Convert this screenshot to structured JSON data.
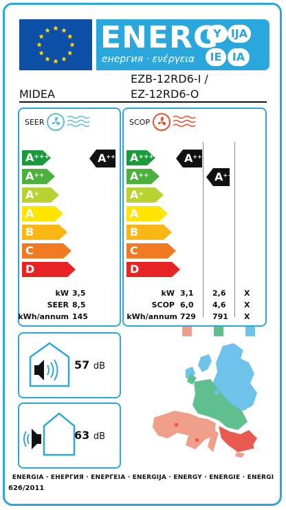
{
  "header": {
    "energy_word": "ENERG",
    "energy_subtitle": "енергия · ενέργεια",
    "lang_badges": [
      "Y",
      "IJA",
      "IE",
      "IA"
    ],
    "model_line1": "EZB-12RD6-I /",
    "model_line2": "EZ-12RD6-O",
    "brand": "MIDEA"
  },
  "seer": {
    "label": "SEER",
    "scale": [
      "A+++",
      "A++",
      "A+",
      "A",
      "B",
      "C",
      "D"
    ],
    "class": "A+++",
    "rows": [
      {
        "label": "kW",
        "value": "3,5"
      },
      {
        "label": "SEER",
        "value": "8,5"
      },
      {
        "label": "kWh/annum",
        "value": "145"
      }
    ]
  },
  "scop": {
    "label": "SCOP",
    "scale": [
      "A+++",
      "A++",
      "A+",
      "A",
      "B",
      "C",
      "D"
    ],
    "class_warm": "A+++",
    "class_average": "A++",
    "rows": [
      {
        "label": "kW",
        "values": [
          "3,1",
          "2,6",
          "X"
        ]
      },
      {
        "label": "SCOP",
        "values": [
          "6,0",
          "4,6",
          "X"
        ]
      },
      {
        "label": "kWh/annum",
        "values": [
          "729",
          "791",
          "X"
        ]
      }
    ]
  },
  "colors": {
    "frame": "#2aa7dd",
    "eu_blue": "#0d4fa6",
    "scale": [
      "#1a9a3a",
      "#4bb13b",
      "#b9d233",
      "#ffe500",
      "#fbb613",
      "#ef7a21",
      "#e52423"
    ],
    "zone_warm": "#f0a08a",
    "zone_average": "#5fbf8f",
    "zone_cold": "#6ec3ea"
  },
  "noise": {
    "indoor_value": "57",
    "outdoor_value": "63",
    "unit": "dB"
  },
  "footer": {
    "languages": "ENERGIA · ЕНЕРГИЯ · ΕΝΕΡΓΕΙΑ · ENERGIJA · ENERGY · ENERGIE · ENERGI",
    "regulation": "626/2011"
  }
}
